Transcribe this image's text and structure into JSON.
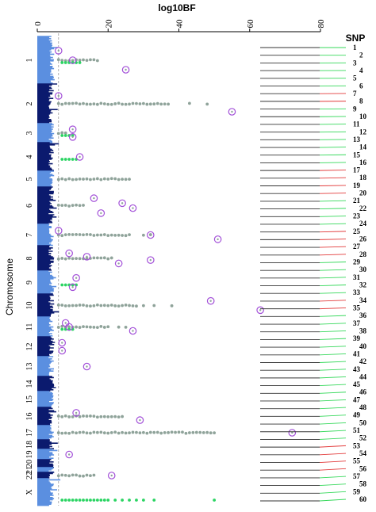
{
  "chart_data": {
    "type": "scatter",
    "xlabel": "log10BF",
    "ylabel": "Chromosome",
    "xlim": [
      0,
      80
    ],
    "xticks": [
      "0",
      "20",
      "40",
      "60",
      "80"
    ],
    "threshold_log10BF": 6,
    "snp_header": "SNP",
    "chromosomes": [
      "1",
      "2",
      "3",
      "4",
      "5",
      "6",
      "7",
      "8",
      "9",
      "10",
      "11",
      "12",
      "13",
      "14",
      "15",
      "16",
      "17",
      "18",
      "19",
      "20",
      "21",
      "22",
      "X"
    ],
    "colors": {
      "chr_light": "#5b8fe0",
      "chr_dark": "#0b1a6e",
      "hit_gray": "#8fa39a",
      "hit_green": "#2bd463",
      "top_circle": "#a24fd8",
      "line_gray": "#333333",
      "connector_green": "#35d85a",
      "connector_red": "#e23a3a"
    },
    "hits_gray": [
      {
        "chr": "1",
        "x": [
          6,
          7,
          8,
          9,
          10,
          11,
          12,
          13,
          14,
          15,
          16,
          17
        ]
      },
      {
        "chr": "2",
        "x": [
          6,
          7,
          8,
          9,
          10,
          11,
          12,
          13,
          14,
          15,
          16,
          17,
          18,
          19,
          20,
          21,
          22,
          23,
          24,
          25,
          26,
          27,
          28,
          29,
          30,
          31,
          32,
          33,
          34,
          35,
          36,
          37,
          43,
          48
        ]
      },
      {
        "chr": "3",
        "x": [
          6,
          7,
          8
        ]
      },
      {
        "chr": "5",
        "x": [
          6,
          7,
          8,
          9,
          10,
          11,
          12,
          13,
          14,
          15,
          16,
          17,
          18,
          19,
          20,
          21,
          22,
          23,
          24,
          25,
          26
        ]
      },
      {
        "chr": "6",
        "x": [
          6,
          7,
          8,
          9,
          10,
          11,
          12,
          13
        ]
      },
      {
        "chr": "7",
        "x": [
          6,
          7,
          8,
          9,
          10,
          11,
          12,
          13,
          14,
          15,
          16,
          17,
          18,
          19,
          20,
          21,
          22,
          23,
          24,
          25,
          26,
          30,
          32
        ]
      },
      {
        "chr": "8",
        "x": [
          6,
          7,
          8,
          9,
          10,
          11,
          12,
          13,
          14,
          15,
          16,
          17,
          18,
          19,
          20,
          21
        ]
      },
      {
        "chr": "10",
        "x": [
          6,
          7,
          8,
          9,
          10,
          11,
          12,
          13,
          14,
          15,
          16,
          17,
          18,
          19,
          20,
          21,
          22,
          23,
          24,
          25,
          26,
          27,
          28,
          30,
          33,
          38
        ]
      },
      {
        "chr": "11",
        "x": [
          6,
          7,
          8,
          9,
          10,
          11,
          12,
          13,
          14,
          15,
          16,
          17,
          18,
          19,
          20,
          23,
          25
        ]
      },
      {
        "chr": "16",
        "x": [
          6,
          7,
          8,
          9,
          10,
          11,
          12,
          13,
          14,
          15,
          16,
          17,
          18,
          19,
          20,
          21,
          22,
          23,
          24
        ]
      },
      {
        "chr": "17",
        "x": [
          6,
          7,
          8,
          9,
          10,
          11,
          12,
          13,
          14,
          15,
          16,
          17,
          18,
          19,
          20,
          21,
          22,
          23,
          24,
          25,
          26,
          27,
          28,
          29,
          30,
          31,
          32,
          33,
          34,
          35,
          36,
          37,
          38,
          39,
          40,
          41,
          42,
          43,
          44,
          45,
          46,
          47,
          48,
          49,
          50
        ]
      },
      {
        "chr": "22",
        "x": [
          6,
          7,
          8,
          9,
          10,
          11,
          12,
          13,
          14,
          15,
          16
        ]
      }
    ],
    "hits_green": [
      {
        "chr": "1",
        "x": [
          7,
          8,
          9,
          10,
          11,
          12
        ]
      },
      {
        "chr": "3",
        "x": [
          7,
          8,
          9,
          10
        ]
      },
      {
        "chr": "4",
        "x": [
          7,
          8,
          9,
          10,
          11
        ]
      },
      {
        "chr": "9",
        "x": [
          7,
          8,
          9,
          10,
          11
        ]
      },
      {
        "chr": "11",
        "x": [
          7,
          8,
          9,
          10
        ]
      },
      {
        "chr": "X",
        "x": [
          7,
          8,
          9,
          10,
          11,
          12,
          13,
          14,
          15,
          16,
          17,
          18,
          19,
          20,
          22,
          24,
          26,
          28,
          30,
          33,
          50
        ]
      }
    ],
    "top_snps": [
      {
        "chr": "1",
        "x": [
          6,
          10,
          25
        ]
      },
      {
        "chr": "2",
        "x": [
          6,
          55
        ]
      },
      {
        "chr": "3",
        "x": [
          10,
          10
        ]
      },
      {
        "chr": "4",
        "x": [
          12
        ]
      },
      {
        "chr": "6",
        "x": [
          16,
          24,
          27,
          18
        ]
      },
      {
        "chr": "7",
        "x": [
          6,
          32,
          51
        ]
      },
      {
        "chr": "8",
        "x": [
          9,
          14,
          32,
          23
        ]
      },
      {
        "chr": "9",
        "x": [
          11,
          10
        ]
      },
      {
        "chr": "10",
        "x": [
          49,
          63
        ]
      },
      {
        "chr": "11",
        "x": [
          8,
          9,
          27
        ]
      },
      {
        "chr": "12",
        "x": [
          7,
          7
        ]
      },
      {
        "chr": "13",
        "x": [
          14
        ]
      },
      {
        "chr": "16",
        "x": [
          11,
          29
        ]
      },
      {
        "chr": "17",
        "x": [
          72
        ]
      },
      {
        "chr": "19",
        "x": [
          9
        ]
      },
      {
        "chr": "22",
        "x": [
          21
        ]
      }
    ],
    "snps": [
      "1",
      "2",
      "3",
      "4",
      "5",
      "6",
      "7",
      "8",
      "9",
      "10",
      "11",
      "12",
      "13",
      "14",
      "15",
      "16",
      "17",
      "18",
      "19",
      "20",
      "21",
      "22",
      "23",
      "24",
      "25",
      "26",
      "27",
      "28",
      "29",
      "30",
      "31",
      "32",
      "33",
      "34",
      "35",
      "36",
      "37",
      "38",
      "39",
      "40",
      "41",
      "42",
      "43",
      "44",
      "45",
      "46",
      "47",
      "48",
      "49",
      "50",
      "51",
      "52",
      "53",
      "54",
      "55",
      "56",
      "57",
      "58",
      "59",
      "60"
    ],
    "red_connectors": [
      "7",
      "8",
      "17",
      "18",
      "19",
      "20",
      "25",
      "26",
      "27",
      "28",
      "34",
      "35",
      "53",
      "54",
      "55",
      "56"
    ]
  }
}
